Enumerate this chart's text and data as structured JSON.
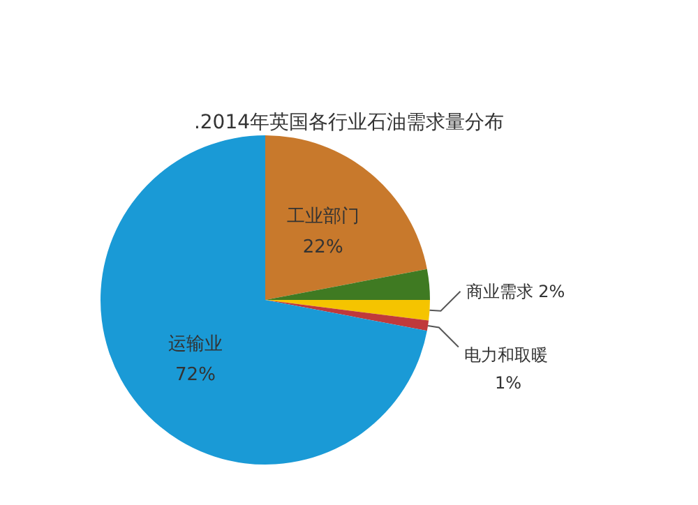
{
  "chart_data": {
    "type": "pie",
    "title": ".2014年英国各行业石油需求量分布",
    "categories": [
      "工业部门",
      null,
      "商业需求",
      "电力和取暖",
      "运输业"
    ],
    "values": [
      22,
      3,
      2,
      1,
      72
    ],
    "value_labels": [
      "22%",
      null,
      "2%",
      "1%",
      "72%"
    ],
    "colors": [
      "#c8792c",
      "#3f7a22",
      "#f5c400",
      "#c0393b",
      "#1a9ad6"
    ]
  }
}
